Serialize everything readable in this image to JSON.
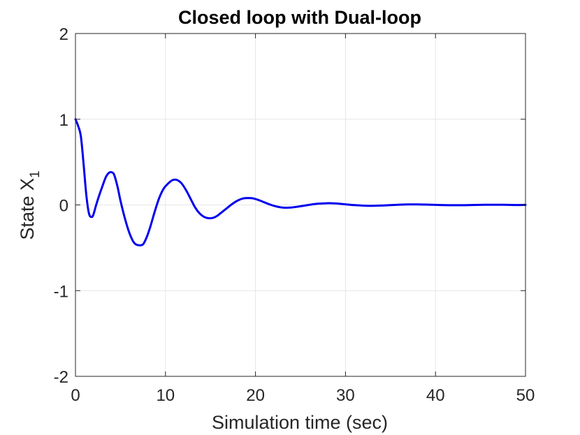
{
  "chart_data": {
    "type": "line",
    "title": "Closed loop with Dual-loop",
    "xlabel": "Simulation time (sec)",
    "ylabel_main": "State X",
    "ylabel_subscript": "1",
    "xlim": [
      0,
      50
    ],
    "ylim": [
      -2,
      2
    ],
    "xticks": [
      0,
      10,
      20,
      30,
      40,
      50
    ],
    "yticks": [
      -2,
      -1,
      0,
      1,
      2
    ],
    "xtick_labels": [
      "0",
      "10",
      "20",
      "30",
      "40",
      "50"
    ],
    "ytick_labels": [
      "-2",
      "-1",
      "0",
      "1",
      "2"
    ],
    "grid": true,
    "line_color": "#0000ee",
    "series": [
      {
        "x": [
          0,
          0.3,
          0.6,
          0.9,
          1.2,
          1.5,
          1.8,
          2.0,
          2.3,
          2.6,
          3.0,
          3.4,
          3.8,
          4.2,
          4.4,
          4.7,
          5.0,
          5.5,
          6.0,
          6.5,
          7.0,
          7.5,
          7.9,
          8.3,
          8.8,
          9.3,
          9.8,
          10.3,
          10.8,
          11.3,
          11.8,
          12.3,
          12.8,
          13.3,
          13.8,
          14.3,
          14.8,
          15.3,
          15.7,
          16.2,
          16.8,
          17.4,
          18.0,
          18.6,
          19.2,
          19.8,
          20.4,
          21.0,
          21.6,
          22.2,
          22.8,
          23.4,
          24.0,
          24.6,
          25.2,
          25.8,
          26.4,
          27.0,
          27.6,
          28.2,
          28.8,
          29.4,
          30.0,
          31.0,
          32.0,
          33.0,
          34.0,
          35.0,
          36.0,
          37.0,
          38.0,
          39.0,
          40.0,
          41.0,
          42.0,
          43.0,
          44.0,
          45.0,
          46.0,
          47.0,
          48.0,
          49.0,
          50.0
        ],
        "y": [
          1.0,
          0.92,
          0.8,
          0.48,
          0.12,
          -0.1,
          -0.14,
          -0.11,
          0.0,
          0.1,
          0.22,
          0.33,
          0.38,
          0.37,
          0.32,
          0.2,
          0.05,
          -0.16,
          -0.33,
          -0.44,
          -0.47,
          -0.46,
          -0.38,
          -0.26,
          -0.08,
          0.08,
          0.19,
          0.25,
          0.29,
          0.29,
          0.25,
          0.17,
          0.07,
          -0.03,
          -0.1,
          -0.14,
          -0.155,
          -0.15,
          -0.13,
          -0.09,
          -0.04,
          0.01,
          0.05,
          0.075,
          0.08,
          0.075,
          0.055,
          0.03,
          0.005,
          -0.015,
          -0.028,
          -0.033,
          -0.03,
          -0.022,
          -0.012,
          -0.002,
          0.008,
          0.015,
          0.018,
          0.02,
          0.018,
          0.013,
          0.007,
          -0.002,
          -0.008,
          -0.01,
          -0.007,
          -0.002,
          0.003,
          0.006,
          0.006,
          0.004,
          0.001,
          -0.002,
          -0.003,
          -0.003,
          -0.001,
          0.001,
          0.002,
          0.002,
          0.001,
          -0.001,
          0.0
        ]
      }
    ]
  }
}
